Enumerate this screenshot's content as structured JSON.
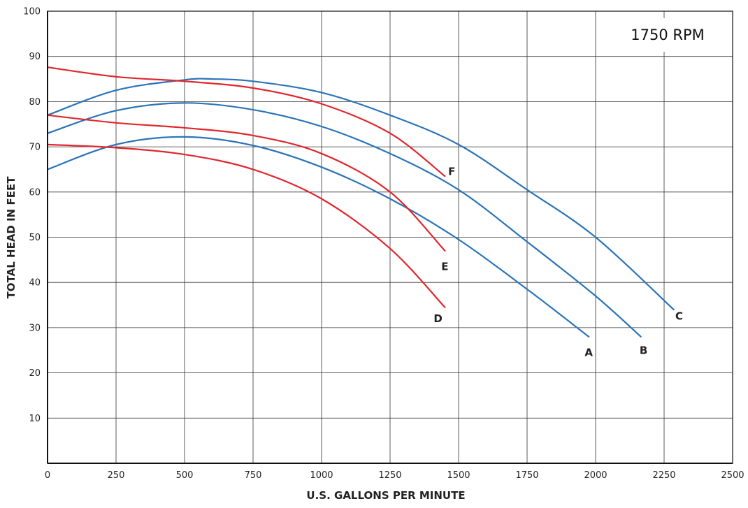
{
  "chart_data": {
    "type": "line",
    "title": "1750 RPM",
    "xlabel": "U.S. GALLONS PER MINUTE",
    "ylabel": "TOTAL HEAD IN FEET",
    "xlim": [
      0,
      2500
    ],
    "ylim": [
      0,
      100
    ],
    "x_ticks": [
      0,
      250,
      500,
      750,
      1000,
      1250,
      1500,
      1750,
      2000,
      2250,
      2500
    ],
    "y_ticks": [
      10,
      20,
      30,
      40,
      50,
      60,
      70,
      80,
      90,
      100
    ],
    "grid": true,
    "colors": {
      "blue": "#2b74b8",
      "red": "#e0282e",
      "grid": "#333333"
    },
    "series": [
      {
        "name": "A",
        "color": "#2b74b8",
        "x": [
          0,
          250,
          500,
          750,
          1000,
          1250,
          1500,
          1750,
          1975
        ],
        "y": [
          65,
          70.5,
          72.2,
          70.3,
          65.5,
          58.5,
          49.5,
          38.5,
          28
        ]
      },
      {
        "name": "B",
        "color": "#2b74b8",
        "x": [
          0,
          250,
          500,
          750,
          1000,
          1250,
          1500,
          1750,
          2000,
          2165
        ],
        "y": [
          73,
          78,
          79.7,
          78.2,
          74.5,
          68.5,
          60.5,
          49,
          37,
          28
        ]
      },
      {
        "name": "C",
        "color": "#2b74b8",
        "x": [
          0,
          250,
          500,
          600,
          750,
          1000,
          1250,
          1500,
          1750,
          2000,
          2285
        ],
        "y": [
          77,
          82.5,
          84.8,
          85,
          84.5,
          82,
          77,
          70.5,
          60.5,
          50,
          34
        ]
      },
      {
        "name": "D",
        "color": "#e0282e",
        "x": [
          0,
          250,
          500,
          750,
          1000,
          1250,
          1450
        ],
        "y": [
          70.5,
          69.8,
          68.3,
          65,
          58.5,
          47.5,
          34.5
        ]
      },
      {
        "name": "E",
        "color": "#e0282e",
        "x": [
          0,
          250,
          500,
          750,
          1000,
          1250,
          1450
        ],
        "y": [
          77,
          75.3,
          74.2,
          72.5,
          68.5,
          60,
          47
        ]
      },
      {
        "name": "F",
        "color": "#e0282e",
        "x": [
          0,
          250,
          500,
          750,
          1000,
          1250,
          1450
        ],
        "y": [
          87.6,
          85.5,
          84.5,
          83,
          79.5,
          73,
          63.5
        ]
      }
    ],
    "curve_labels": [
      {
        "text": "A",
        "x": 1975,
        "y": 24.5
      },
      {
        "text": "B",
        "x": 2175,
        "y": 25
      },
      {
        "text": "C",
        "x": 2305,
        "y": 32.5
      },
      {
        "text": "D",
        "x": 1425,
        "y": 32
      },
      {
        "text": "E",
        "x": 1450,
        "y": 43.5
      },
      {
        "text": "F",
        "x": 1475,
        "y": 64.5
      }
    ]
  }
}
